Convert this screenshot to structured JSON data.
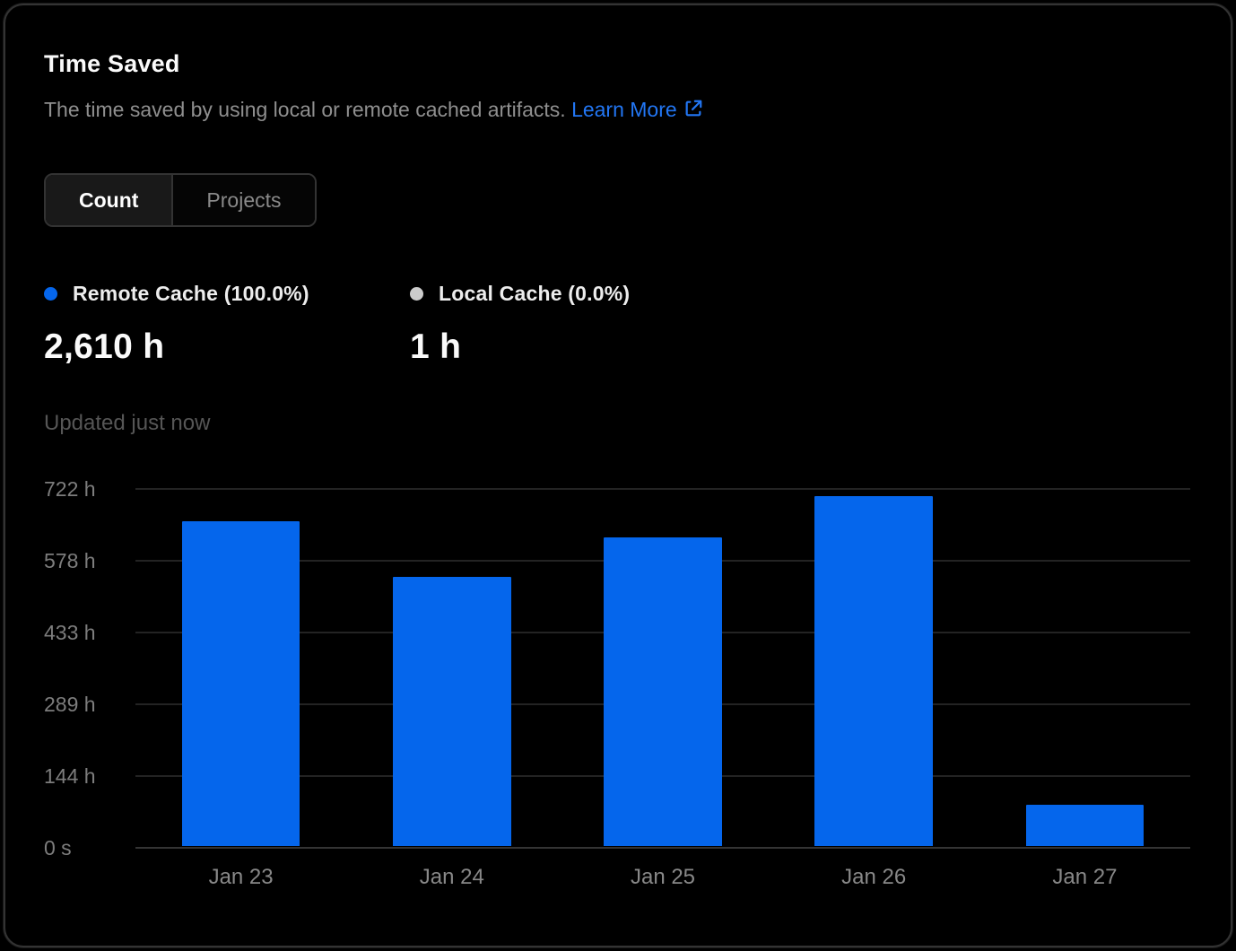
{
  "card": {
    "title": "Time Saved",
    "description": "The time saved by using local or remote cached artifacts.",
    "learn_more_label": "Learn More",
    "updated_text": "Updated just now"
  },
  "tabs": [
    {
      "label": "Count",
      "active": true
    },
    {
      "label": "Projects",
      "active": false
    }
  ],
  "legend": [
    {
      "label": "Remote Cache (100.0%)",
      "value": "2,610 h",
      "color": "#0566ec"
    },
    {
      "label": "Local Cache (0.0%)",
      "value": "1 h",
      "color": "#cccccc"
    }
  ],
  "colors": {
    "accent_blue": "#0566ec",
    "link_blue": "#2276f3",
    "card_border": "#333333",
    "grid_line": "#232323",
    "axis_baseline": "#343434",
    "muted_text": "#8f8f8f",
    "faint_text": "#565656"
  },
  "chart_data": {
    "type": "bar",
    "title": "Time Saved",
    "series_name": "Remote Cache",
    "categories": [
      "Jan 23",
      "Jan 24",
      "Jan 25",
      "Jan 26",
      "Jan 27"
    ],
    "values": [
      655,
      543,
      622,
      706,
      84
    ],
    "value_unit": "h",
    "total_label": "2,610 h",
    "xlabel": "",
    "ylabel": "",
    "ylim": [
      0,
      722
    ],
    "y_ticks": [
      {
        "value": 722,
        "label": "722 h"
      },
      {
        "value": 578,
        "label": "578 h"
      },
      {
        "value": 433,
        "label": "433 h"
      },
      {
        "value": 289,
        "label": "289 h"
      },
      {
        "value": 144,
        "label": "144 h"
      },
      {
        "value": 0,
        "label": "0 s"
      }
    ],
    "grid": true,
    "bar_color": "#0566ec",
    "legend_position": "top"
  }
}
